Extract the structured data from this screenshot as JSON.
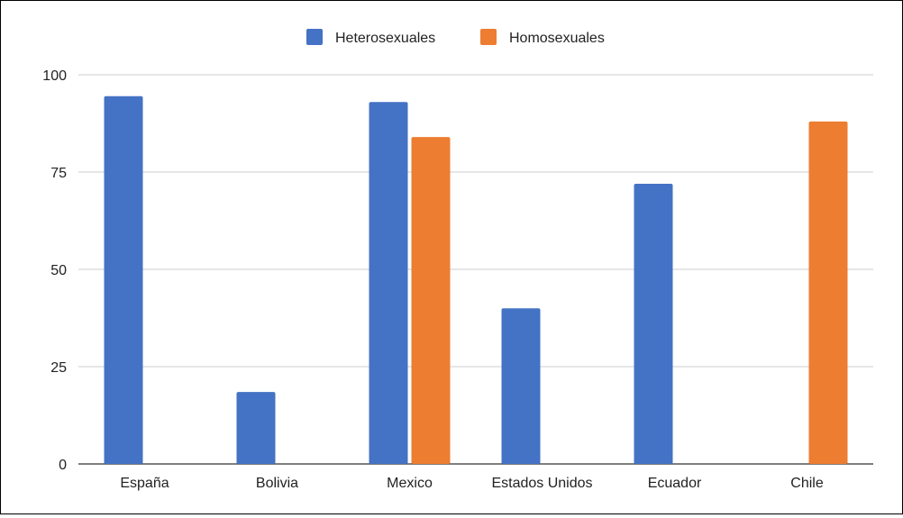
{
  "chart_data": {
    "type": "bar",
    "title": "",
    "xlabel": "",
    "ylabel": "",
    "categories": [
      "España",
      "Bolivia",
      "Mexico",
      "Estados Unidos",
      "Ecuador",
      "Chile"
    ],
    "series": [
      {
        "name": "Heterosexuales",
        "color": "#4472C4",
        "values": [
          94.5,
          18.5,
          93,
          40,
          72,
          null
        ]
      },
      {
        "name": "Homosexuales",
        "color": "#ED7D31",
        "values": [
          null,
          null,
          84,
          null,
          null,
          88
        ]
      }
    ],
    "ylim": [
      0,
      100
    ],
    "yticks": [
      0,
      25,
      50,
      75,
      100
    ],
    "grid": true,
    "legend_position": "top-center"
  }
}
